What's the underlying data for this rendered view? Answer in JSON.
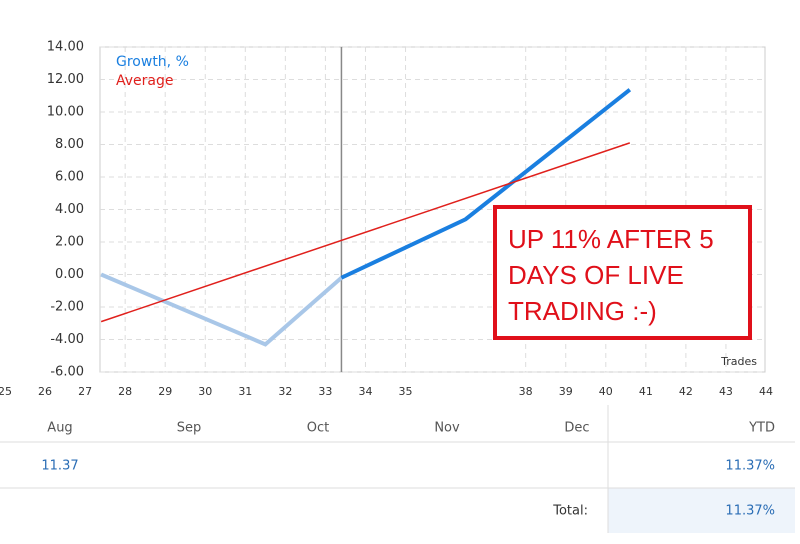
{
  "chart_data": {
    "type": "line",
    "xlim": [
      25,
      44
    ],
    "xticks": [
      25,
      26,
      27,
      28,
      29,
      30,
      31,
      32,
      33,
      34,
      35,
      38,
      39,
      40,
      41,
      42,
      43,
      44
    ],
    "ylim": [
      -6,
      14
    ],
    "yticks": [
      {
        "value": 14,
        "label": "14.00"
      },
      {
        "value": 12,
        "label": "12.00"
      },
      {
        "value": 10,
        "label": "10.00"
      },
      {
        "value": 8,
        "label": "8.00"
      },
      {
        "value": 6,
        "label": "6.00"
      },
      {
        "value": 4,
        "label": "4.00"
      },
      {
        "value": 2,
        "label": "2.00"
      },
      {
        "value": 0,
        "label": "0.00"
      },
      {
        "value": -2,
        "label": "-2.00"
      },
      {
        "value": -4,
        "label": "-4.00"
      },
      {
        "value": -6,
        "label": "-6.00"
      }
    ],
    "x_label": "Trades",
    "grid": true,
    "legend": "top-left",
    "divider_x": 33.4,
    "series": [
      {
        "name": "Growth, %",
        "color": "#1a7fe0",
        "past_color": "#a9c7e8",
        "x": [
          27.4,
          31.5,
          33.4,
          36.5,
          40.6
        ],
        "values": [
          0,
          -4.3,
          -0.2,
          3.4,
          11.37
        ]
      },
      {
        "name": "Average",
        "color": "#e0201c",
        "x": [
          27.4,
          40.6
        ],
        "values": [
          -2.9,
          8.1
        ]
      }
    ],
    "annotation": [
      "UP 11% AFTER 5",
      "DAYS OF LIVE",
      "TRADING :-)"
    ]
  },
  "table": {
    "header": [
      "Aug",
      "Sep",
      "Oct",
      "Nov",
      "Dec",
      "YTD"
    ],
    "row": {
      "aug": "11.37",
      "ytd": "11.37%"
    },
    "total": {
      "label": "Total:",
      "value": "11.37%"
    }
  }
}
